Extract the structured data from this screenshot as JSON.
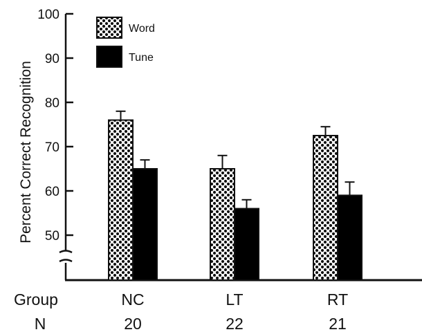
{
  "chart_data": {
    "type": "bar",
    "ylabel": "Percent Correct Recognition",
    "ylim": [
      40,
      100
    ],
    "y_ticks": [
      50,
      60,
      70,
      80,
      90,
      100
    ],
    "axis_break": true,
    "grid": false,
    "legend_position": "top-left",
    "categories": [
      "NC",
      "LT",
      "RT"
    ],
    "category_axis_label": "Group",
    "n_label": "N",
    "n_values": [
      "20",
      "22",
      "21"
    ],
    "series": [
      {
        "name": "Word",
        "pattern": "dotted",
        "values": [
          76,
          65,
          72.5
        ],
        "error": [
          2,
          3,
          2
        ]
      },
      {
        "name": "Tune",
        "pattern": "solid",
        "color": "#000000",
        "values": [
          65,
          56,
          59
        ],
        "error": [
          2,
          2,
          3
        ]
      }
    ]
  }
}
